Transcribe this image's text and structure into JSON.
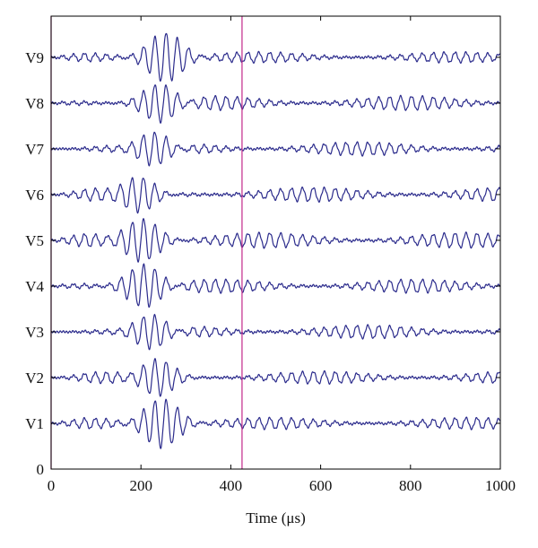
{
  "chart_data": {
    "type": "line",
    "xlabel": "Time (μs)",
    "xlim": [
      0,
      1000
    ],
    "xticks": [
      0,
      200,
      400,
      600,
      800,
      1000
    ],
    "ylim": [
      0,
      9.9
    ],
    "ytick_labels": [
      "0",
      "V1",
      "V2",
      "V3",
      "V4",
      "V5",
      "V6",
      "V7",
      "V8",
      "V9"
    ],
    "grid": false,
    "vertical_markers": [
      0,
      425
    ],
    "colors": {
      "trace": "#2b2b8c",
      "marker": "#c2288a",
      "axes": "#000000"
    },
    "series": [
      {
        "name": "V1",
        "baseline": 1,
        "burst_center_us": 245,
        "burst_amplitude": 0.55,
        "tail_amplitude": 0.12
      },
      {
        "name": "V2",
        "baseline": 2,
        "burst_center_us": 235,
        "burst_amplitude": 0.5,
        "tail_amplitude": 0.13
      },
      {
        "name": "V3",
        "baseline": 3,
        "burst_center_us": 225,
        "burst_amplitude": 0.5,
        "tail_amplitude": 0.14
      },
      {
        "name": "V4",
        "baseline": 4,
        "burst_center_us": 210,
        "burst_amplitude": 0.5,
        "tail_amplitude": 0.14
      },
      {
        "name": "V5",
        "baseline": 5,
        "burst_center_us": 200,
        "burst_amplitude": 0.5,
        "tail_amplitude": 0.16
      },
      {
        "name": "V6",
        "baseline": 6,
        "burst_center_us": 195,
        "burst_amplitude": 0.5,
        "tail_amplitude": 0.15
      },
      {
        "name": "V7",
        "baseline": 7,
        "burst_center_us": 230,
        "burst_amplitude": 0.5,
        "tail_amplitude": 0.14
      },
      {
        "name": "V8",
        "baseline": 8,
        "burst_center_us": 245,
        "burst_amplitude": 0.5,
        "tail_amplitude": 0.15
      },
      {
        "name": "V9",
        "baseline": 9,
        "burst_center_us": 255,
        "burst_amplitude": 0.55,
        "tail_amplitude": 0.11
      }
    ]
  }
}
